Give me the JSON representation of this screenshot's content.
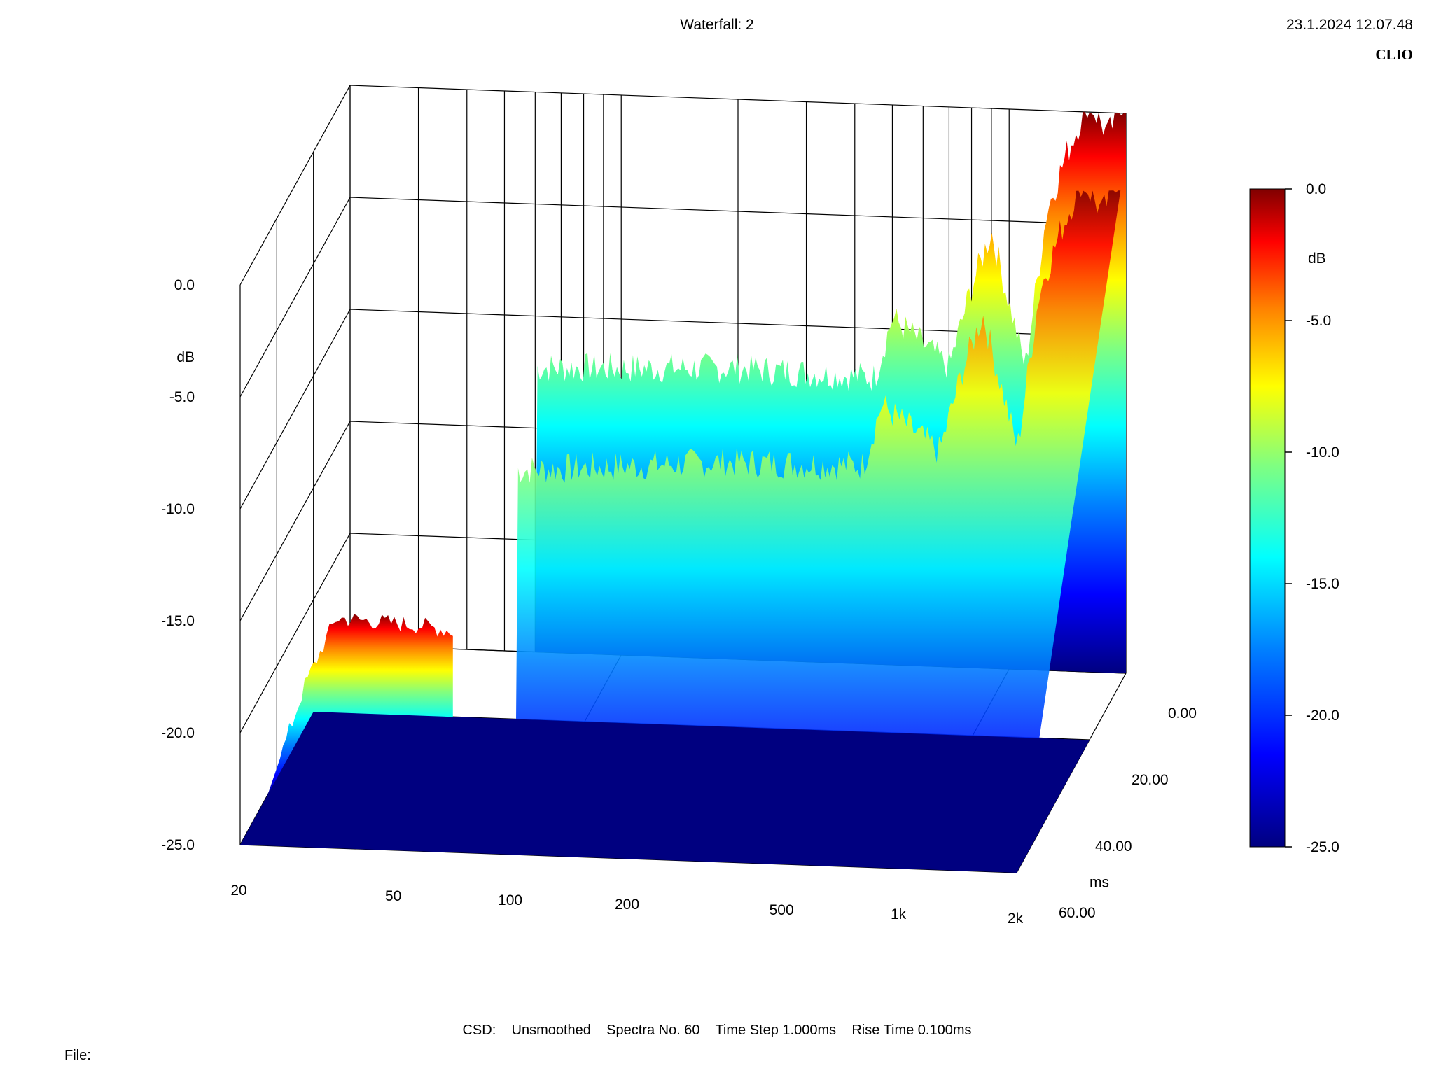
{
  "header": {
    "title": "Waterfall: 2",
    "datetime": "23.1.2024 12.07.48",
    "brand": "CLIO"
  },
  "footer": {
    "csd_label": "CSD:",
    "smoothing": "Unsmoothed",
    "spectra": "Spectra No. 60",
    "time_step": "Time Step 1.000ms",
    "rise_time": "Rise Time 0.100ms",
    "file_label": "File:"
  },
  "colorbar": {
    "unit": "dB",
    "ticks": [
      "0.0",
      "-5.0",
      "-10.0",
      "-15.0",
      "-20.0",
      "-25.0"
    ],
    "colors": [
      "#800000",
      "#ff0000",
      "#ff8000",
      "#ffff00",
      "#00ffff",
      "#0080ff",
      "#0000ff",
      "#000080"
    ]
  },
  "chart_data": {
    "type": "waterfall",
    "z_axis": {
      "label": "dB",
      "ticks": [
        "0.0",
        "-5.0",
        "-10.0",
        "-15.0",
        "-20.0",
        "-25.0"
      ],
      "range": [
        -25,
        0
      ]
    },
    "x_axis": {
      "scale": "log",
      "range": [
        20,
        2000
      ],
      "ticks": [
        "20",
        "50",
        "100",
        "200",
        "500",
        "1k",
        "2k"
      ]
    },
    "time_axis": {
      "label": "ms",
      "ticks": [
        "0.00",
        "20.00",
        "40.00",
        "60.00"
      ],
      "range": [
        0,
        60
      ]
    },
    "series_front_profile": [
      {
        "f": 20,
        "db": -25
      },
      {
        "f": 25,
        "db": -20
      },
      {
        "f": 30,
        "db": -17
      },
      {
        "f": 50,
        "db": -17.2
      },
      {
        "f": 60,
        "db": -17.4
      },
      {
        "f": 60,
        "db": -25
      }
    ],
    "series_back_profile": [
      {
        "f": 60,
        "db": -12.3
      },
      {
        "f": 100,
        "db": -12.2
      },
      {
        "f": 200,
        "db": -12.0
      },
      {
        "f": 450,
        "db": -12.2
      },
      {
        "f": 500,
        "db": -9.5
      },
      {
        "f": 700,
        "db": -11.6
      },
      {
        "f": 800,
        "db": -8.0
      },
      {
        "f": 900,
        "db": -5.5
      },
      {
        "f": 1100,
        "db": -11.5
      },
      {
        "f": 1250,
        "db": -4.5
      },
      {
        "f": 1400,
        "db": -2.0
      },
      {
        "f": 1600,
        "db": 0.5
      },
      {
        "f": 1800,
        "db": -1.0
      },
      {
        "f": 2000,
        "db": 1.0
      }
    ],
    "grid": true
  }
}
